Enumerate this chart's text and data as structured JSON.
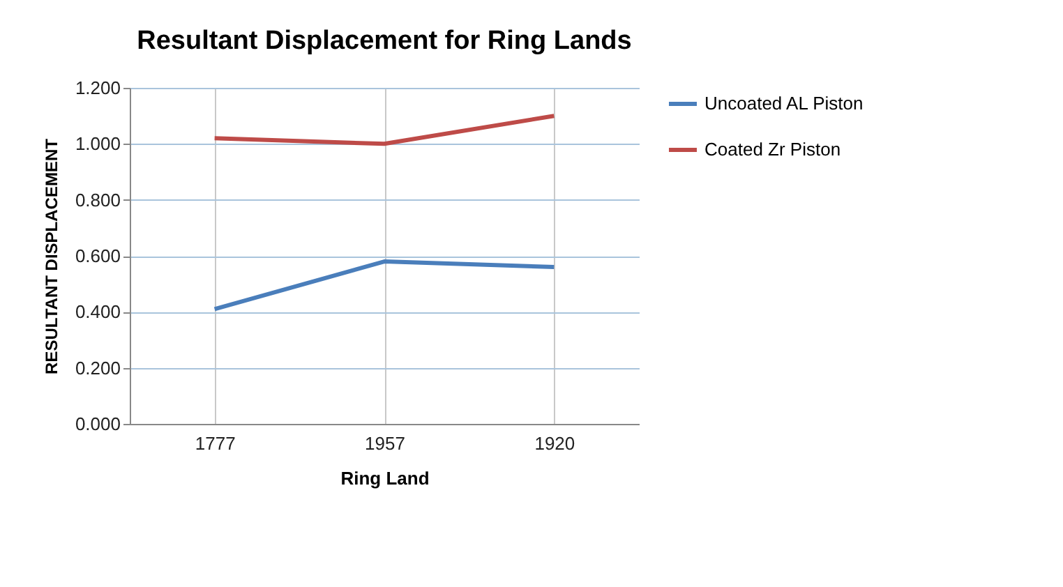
{
  "chart_data": {
    "type": "line",
    "title": "Resultant Displacement for Ring Lands",
    "xlabel": "Ring Land",
    "ylabel": "RESULTANT DISPLACEMENT",
    "categories": [
      "1777",
      "1957",
      "1920"
    ],
    "series": [
      {
        "name": "Uncoated AL Piston",
        "color": "#4a7ebb",
        "values": [
          0.41,
          0.58,
          0.56
        ]
      },
      {
        "name": "Coated Zr Piston",
        "color": "#be4b48",
        "values": [
          1.02,
          1.0,
          1.1
        ]
      }
    ],
    "ylim": [
      0,
      1.2
    ],
    "yticks": [
      {
        "value": 0,
        "label": "0.000"
      },
      {
        "value": 0.2,
        "label": "0.200"
      },
      {
        "value": 0.4,
        "label": "0.400"
      },
      {
        "value": 0.6,
        "label": "0.600"
      },
      {
        "value": 0.8,
        "label": "0.800"
      },
      {
        "value": 1,
        "label": "1.000"
      },
      {
        "value": 1.2,
        "label": "1.200"
      }
    ],
    "grid": true,
    "legend": "right",
    "marker": "none"
  }
}
